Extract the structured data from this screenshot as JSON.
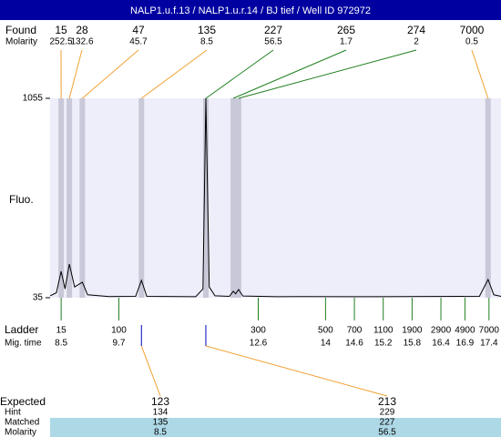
{
  "title": "NALP1.u.f.13 / NALP1.u.r.14 / BJ tief / Well ID 972972",
  "found": {
    "label": "Found",
    "sublabel": "Molarity",
    "peaks": [
      {
        "size": 15,
        "molarity": 252.5,
        "time": 8.5,
        "color": "#f0a030"
      },
      {
        "size": 28,
        "molarity": 132.6,
        "time": 8.67,
        "color": "#f0a030"
      },
      {
        "size": 47,
        "molarity": 45.7,
        "time": 8.94,
        "color": "#f0a030"
      },
      {
        "size": 135,
        "molarity": 8.5,
        "time": 10.17,
        "color": "#f0a030"
      },
      {
        "size": 227,
        "molarity": 56.5,
        "time": 11.51,
        "color": "#208020"
      },
      {
        "size": 265,
        "molarity": 1.7,
        "time": 12.08,
        "color": "#208020"
      },
      {
        "size": 274,
        "molarity": 2,
        "time": 12.19,
        "color": "#208020"
      },
      {
        "size": 7000,
        "molarity": 0.5,
        "time": 17.38,
        "color": "#f0a030"
      }
    ]
  },
  "plot": {
    "type": "line",
    "ylabel": "Fluo.",
    "ylim": [
      35,
      1055
    ],
    "yticks": [
      35,
      1055
    ],
    "xlim": [
      8.27,
      17.65
    ],
    "background": "#eeeefa",
    "band_color": "#c8c8d8",
    "color": "#000000",
    "x": [
      8.27,
      8.4,
      8.5,
      8.58,
      8.67,
      8.78,
      8.94,
      9.05,
      9.5,
      10.05,
      10.17,
      10.28,
      11.3,
      11.45,
      11.51,
      11.58,
      11.7,
      12.0,
      12.08,
      12.13,
      12.19,
      12.28,
      13.0,
      13.5,
      15.0,
      17.2,
      17.38,
      17.5,
      17.65
    ],
    "values": [
      45,
      60,
      170,
      80,
      207,
      90,
      114,
      50,
      41,
      42,
      124,
      42,
      40,
      80,
      1055,
      90,
      45,
      42,
      68,
      55,
      77,
      44,
      40,
      41,
      40,
      42,
      128,
      50,
      42
    ]
  },
  "ladder": {
    "label": "Ladder",
    "sublabel": "Mig. time",
    "color": "#208020",
    "sizes": [
      15,
      100,
      300,
      500,
      700,
      1100,
      1900,
      2900,
      4900,
      7000
    ],
    "times": [
      8.5,
      9.7,
      12.6,
      14,
      14.6,
      15.2,
      15.8,
      16.4,
      16.9,
      17.4
    ]
  },
  "expected": {
    "labels": [
      "Expected",
      "Hint",
      "Matched",
      "Molarity"
    ],
    "row_color": "#add8e6",
    "items": [
      {
        "expected": 123,
        "hint": 134,
        "matched": 135,
        "molarity": 8.5
      },
      {
        "expected": 213,
        "hint": 229,
        "matched": 227,
        "molarity": 56.5
      }
    ]
  }
}
